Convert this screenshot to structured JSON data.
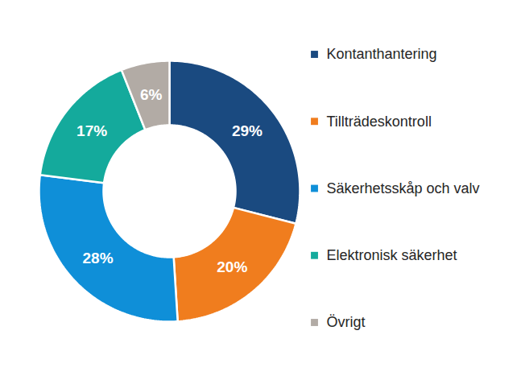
{
  "chart_data": {
    "type": "pie",
    "categories": [
      "Kontanthantering",
      "Tillträdeskontroll",
      "Säkerhetsskåp och valv",
      "Elektronisk säkerhet",
      "Övrigt"
    ],
    "values": [
      29,
      20,
      28,
      17,
      6
    ],
    "value_labels": [
      "29%",
      "20%",
      "28%",
      "17%",
      "6%"
    ],
    "colors": [
      "#1a4a80",
      "#f07d1e",
      "#0f8fd8",
      "#14aa9c",
      "#b2aba5"
    ],
    "data_labels": true,
    "legend": "right"
  }
}
